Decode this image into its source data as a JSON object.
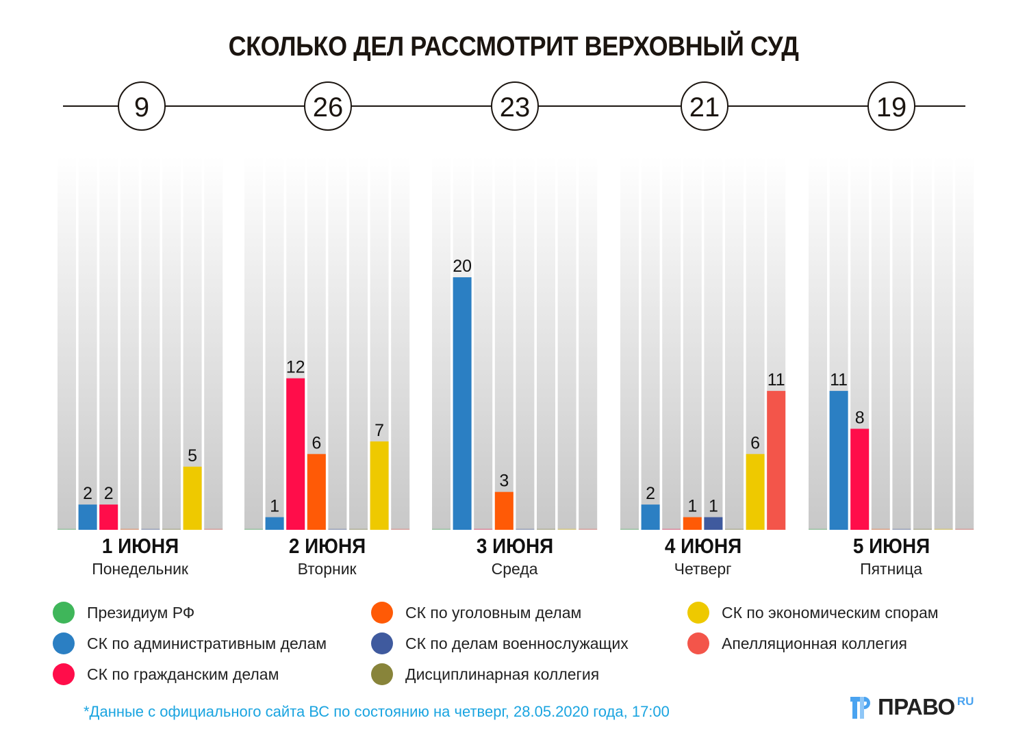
{
  "title": "СКОЛЬКО ДЕЛ РАССМОТРИТ ВЕРХОВНЫЙ СУД",
  "footnote": "*Данные с официального сайта ВС по состоянию на четверг, 28.05.2020 года, 17:00",
  "logo": {
    "text": "ПРАВО",
    "suffix": "RU"
  },
  "chart_data": {
    "type": "bar",
    "title": "СКОЛЬКО ДЕЛ РАССМОТРИТ ВЕРХОВНЫЙ СУД",
    "xlabel": "",
    "ylabel": "",
    "ylim": [
      0,
      29.6
    ],
    "grid": false,
    "legend_position": "bottom",
    "categories": [
      {
        "date": "1 ИЮНЯ",
        "weekday": "Понедельник",
        "total": "9"
      },
      {
        "date": "2 ИЮНЯ",
        "weekday": "Вторник",
        "total": "26"
      },
      {
        "date": "3 ИЮНЯ",
        "weekday": "Среда",
        "total": "23"
      },
      {
        "date": "4 ИЮНЯ",
        "weekday": "Четверг",
        "total": "21"
      },
      {
        "date": "5 ИЮНЯ",
        "weekday": "Пятница",
        "total": "19"
      }
    ],
    "series": [
      {
        "name": "Президиум РФ",
        "color": "#3fb65a",
        "values": [
          0,
          0,
          0,
          0,
          0
        ]
      },
      {
        "name": "СК по административным делам",
        "color": "#2b7fc3",
        "values": [
          2,
          1,
          20,
          2,
          11
        ]
      },
      {
        "name": "СК по гражданским делам",
        "color": "#ff0d4a",
        "values": [
          2,
          12,
          0,
          0,
          8
        ]
      },
      {
        "name": "СК по уголовным делам",
        "color": "#ff5a06",
        "values": [
          0,
          6,
          3,
          1,
          0
        ]
      },
      {
        "name": "СК по делам военнослужащих",
        "color": "#3f5a9e",
        "values": [
          0,
          0,
          0,
          1,
          0
        ]
      },
      {
        "name": "Дисциплинарная коллегия",
        "color": "#88843a",
        "values": [
          0,
          0,
          0,
          0,
          0
        ]
      },
      {
        "name": "СК по экономическим спорам",
        "color": "#eec900",
        "values": [
          5,
          7,
          0,
          6,
          0
        ]
      },
      {
        "name": "Апелляционная коллегия",
        "color": "#f3554a",
        "values": [
          0,
          0,
          0,
          11,
          0
        ]
      }
    ]
  }
}
